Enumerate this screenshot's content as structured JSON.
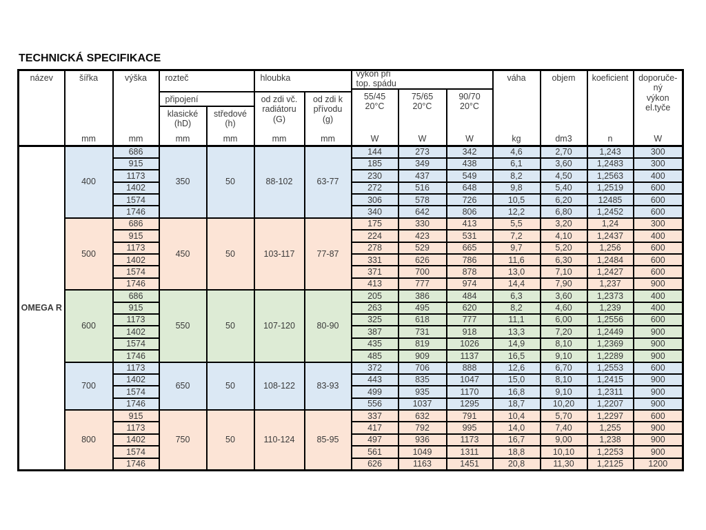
{
  "title": "TECHNICKÁ SPECIFIKACE",
  "product": "OMEGA R",
  "header": {
    "nazev": "název",
    "sirka": "šířka",
    "vyska": "výška",
    "roztec": "rozteč",
    "pripojeni": "připojení",
    "klasicke_l1": "klasické",
    "klasicke_l2": "(hD)",
    "stredove_l1": "středové",
    "stredove_l2": "(h)",
    "hloubka": "hloubka",
    "odzdi_G_l1": "od zdi  vč.",
    "odzdi_G_l2": "radiátoru",
    "odzdi_G_l3": "(G)",
    "odzdi_g_l1": "od zdi  k",
    "odzdi_g_l2": "přívodu",
    "odzdi_g_l3": "(g)",
    "vykon_l1": "výkon při",
    "vykon_l2": "top. spádu",
    "t1_l1": "55/45",
    "t1_l2": "20°C",
    "t2_l1": "75/65",
    "t2_l2": "20°C",
    "t3_l1": "90/70",
    "t3_l2": "20°C",
    "vaha": "váha",
    "objem": "objem",
    "koeficient": "koeficient",
    "dop_l1": "doporuče-",
    "dop_l2": "ný",
    "dop_l3": "výkon",
    "dop_l4": "el.tyče",
    "units": {
      "mm": "mm",
      "W": "W",
      "kg": "kg",
      "dm3": "dm3",
      "n": "n"
    }
  },
  "colors": {
    "blue": "#dbe8f4",
    "peach": "#fce4d6",
    "green": "#ddebd5"
  },
  "groups": [
    {
      "sirka": "400",
      "color": "blue",
      "klasicke": "350",
      "stredove": "50",
      "hloubka_G": "88-102",
      "hloubka_g": "63-77",
      "rows": [
        {
          "vyska": "686",
          "w1": "144",
          "w2": "273",
          "w3": "342",
          "vaha": "4,6",
          "objem": "2,70",
          "koef": "1,243",
          "dop": "300"
        },
        {
          "vyska": "915",
          "w1": "185",
          "w2": "349",
          "w3": "438",
          "vaha": "6,1",
          "objem": "3,60",
          "koef": "1,2483",
          "dop": "300"
        },
        {
          "vyska": "1173",
          "w1": "230",
          "w2": "437",
          "w3": "549",
          "vaha": "8,2",
          "objem": "4,50",
          "koef": "1,2563",
          "dop": "400"
        },
        {
          "vyska": "1402",
          "w1": "272",
          "w2": "516",
          "w3": "648",
          "vaha": "9,8",
          "objem": "5,40",
          "koef": "1,2519",
          "dop": "600"
        },
        {
          "vyska": "1574",
          "w1": "306",
          "w2": "578",
          "w3": "726",
          "vaha": "10,5",
          "objem": "6,20",
          "koef": "12485",
          "dop": "600"
        },
        {
          "vyska": "1746",
          "w1": "340",
          "w2": "642",
          "w3": "806",
          "vaha": "12,2",
          "objem": "6,80",
          "koef": "1,2452",
          "dop": "600"
        }
      ]
    },
    {
      "sirka": "500",
      "color": "peach",
      "klasicke": "450",
      "stredove": "50",
      "hloubka_G": "103-117",
      "hloubka_g": "77-87",
      "rows": [
        {
          "vyska": "686",
          "w1": "175",
          "w2": "330",
          "w3": "413",
          "vaha": "5,5",
          "objem": "3,20",
          "koef": "1,24",
          "dop": "300"
        },
        {
          "vyska": "915",
          "w1": "224",
          "w2": "423",
          "w3": "531",
          "vaha": "7,2",
          "objem": "4,10",
          "koef": "1,2437",
          "dop": "400"
        },
        {
          "vyska": "1173",
          "w1": "278",
          "w2": "529",
          "w3": "665",
          "vaha": "9,7",
          "objem": "5,20",
          "koef": "1,256",
          "dop": "600"
        },
        {
          "vyska": "1402",
          "w1": "331",
          "w2": "626",
          "w3": "786",
          "vaha": "11,6",
          "objem": "6,30",
          "koef": "1,2484",
          "dop": "600"
        },
        {
          "vyska": "1574",
          "w1": "371",
          "w2": "700",
          "w3": "878",
          "vaha": "13,0",
          "objem": "7,10",
          "koef": "1,2427",
          "dop": "600"
        },
        {
          "vyska": "1746",
          "w1": "413",
          "w2": "777",
          "w3": "974",
          "vaha": "14,4",
          "objem": "7,90",
          "koef": "1,237",
          "dop": "900"
        }
      ]
    },
    {
      "sirka": "600",
      "color": "green",
      "klasicke": "550",
      "stredove": "50",
      "hloubka_G": "107-120",
      "hloubka_g": "80-90",
      "rows": [
        {
          "vyska": "686",
          "w1": "205",
          "w2": "386",
          "w3": "484",
          "vaha": "6,3",
          "objem": "3,60",
          "koef": "1,2373",
          "dop": "400"
        },
        {
          "vyska": "915",
          "w1": "263",
          "w2": "495",
          "w3": "620",
          "vaha": "8,2",
          "objem": "4,60",
          "koef": "1,239",
          "dop": "400"
        },
        {
          "vyska": "1173",
          "w1": "325",
          "w2": "618",
          "w3": "777",
          "vaha": "11,1",
          "objem": "6,00",
          "koef": "1,2556",
          "dop": "600"
        },
        {
          "vyska": "1402",
          "w1": "387",
          "w2": "731",
          "w3": "918",
          "vaha": "13,3",
          "objem": "7,20",
          "koef": "1,2449",
          "dop": "900"
        },
        {
          "vyska": "1574",
          "w1": "435",
          "w2": "819",
          "w3": "1026",
          "vaha": "14,9",
          "objem": "8,10",
          "koef": "1,2369",
          "dop": "900"
        },
        {
          "vyska": "1746",
          "w1": "485",
          "w2": "909",
          "w3": "1137",
          "vaha": "16,5",
          "objem": "9,10",
          "koef": "1,2289",
          "dop": "900"
        }
      ]
    },
    {
      "sirka": "700",
      "color": "blue",
      "klasicke": "650",
      "stredove": "50",
      "hloubka_G": "108-122",
      "hloubka_g": "83-93",
      "rows": [
        {
          "vyska": "1173",
          "w1": "372",
          "w2": "706",
          "w3": "888",
          "vaha": "12,6",
          "objem": "6,70",
          "koef": "1,2553",
          "dop": "600"
        },
        {
          "vyska": "1402",
          "w1": "443",
          "w2": "835",
          "w3": "1047",
          "vaha": "15,0",
          "objem": "8,10",
          "koef": "1,2415",
          "dop": "900"
        },
        {
          "vyska": "1574",
          "w1": "499",
          "w2": "935",
          "w3": "1170",
          "vaha": "16,8",
          "objem": "9,10",
          "koef": "1,2311",
          "dop": "900"
        },
        {
          "vyska": "1746",
          "w1": "556",
          "w2": "1037",
          "w3": "1295",
          "vaha": "18,7",
          "objem": "10,20",
          "koef": "1,2207",
          "dop": "900"
        }
      ]
    },
    {
      "sirka": "800",
      "color": "peach",
      "klasicke": "750",
      "stredove": "50",
      "hloubka_G": "110-124",
      "hloubka_g": "85-95",
      "rows": [
        {
          "vyska": "915",
          "w1": "337",
          "w2": "632",
          "w3": "791",
          "vaha": "10,4",
          "objem": "5,70",
          "koef": "1,2297",
          "dop": "600"
        },
        {
          "vyska": "1173",
          "w1": "417",
          "w2": "792",
          "w3": "995",
          "vaha": "14,0",
          "objem": "7,40",
          "koef": "1,255",
          "dop": "900"
        },
        {
          "vyska": "1402",
          "w1": "497",
          "w2": "936",
          "w3": "1173",
          "vaha": "16,7",
          "objem": "9,00",
          "koef": "1,238",
          "dop": "900"
        },
        {
          "vyska": "1574",
          "w1": "561",
          "w2": "1049",
          "w3": "1311",
          "vaha": "18,8",
          "objem": "10,10",
          "koef": "1,2253",
          "dop": "900"
        },
        {
          "vyska": "1746",
          "w1": "626",
          "w2": "1163",
          "w3": "1451",
          "vaha": "20,8",
          "objem": "11,30",
          "koef": "1,2125",
          "dop": "1200"
        }
      ]
    }
  ]
}
